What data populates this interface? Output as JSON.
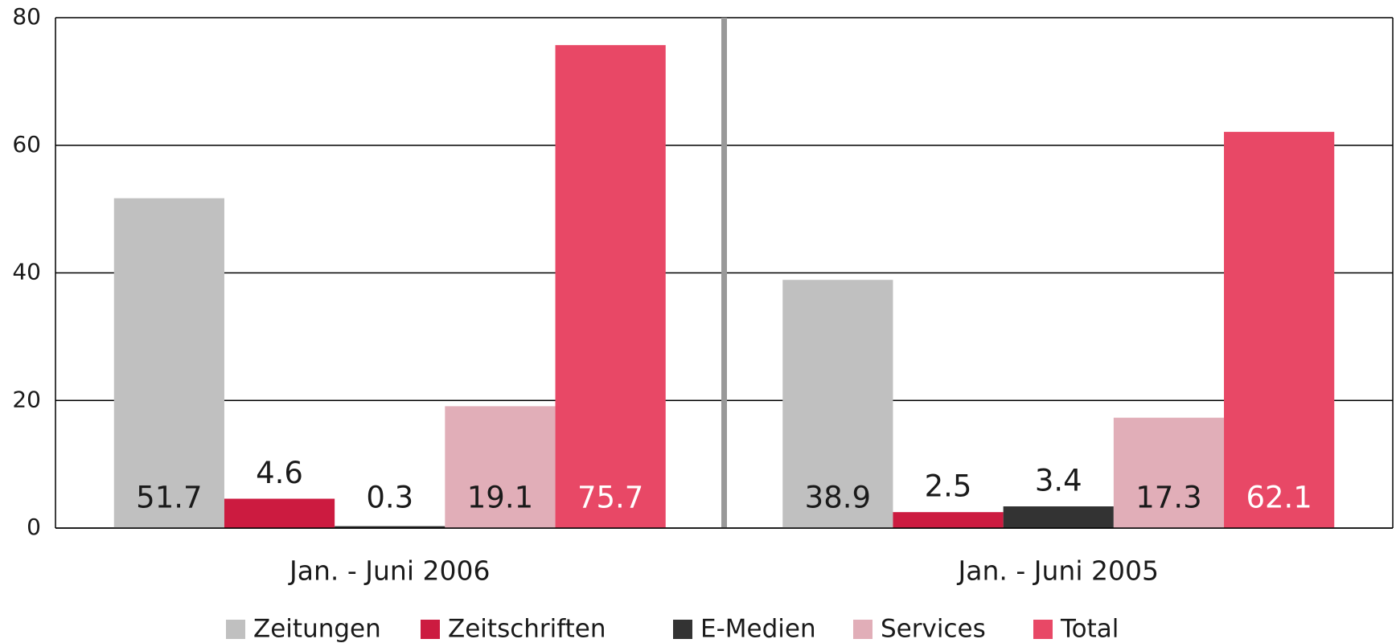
{
  "chart_data": {
    "type": "bar",
    "categories": [
      "Jan. - Juni 2006",
      "Jan. - Juni 2005"
    ],
    "series": [
      {
        "name": "Zeitungen",
        "color": "#c0c0c0",
        "label_color": "#1a1a1a",
        "values": [
          51.7,
          38.9
        ]
      },
      {
        "name": "Zeitschriften",
        "color": "#cc1b40",
        "label_color": "#1a1a1a",
        "values": [
          4.6,
          2.5
        ]
      },
      {
        "name": "E-Medien",
        "color": "#333333",
        "label_color": "#1a1a1a",
        "values": [
          0.3,
          3.4
        ]
      },
      {
        "name": "Services",
        "color": "#e1aeb8",
        "label_color": "#1a1a1a",
        "values": [
          19.1,
          17.3
        ]
      },
      {
        "name": "Total",
        "color": "#e84866",
        "label_color": "#ffffff",
        "values": [
          75.7,
          62.1
        ]
      }
    ],
    "ylim": [
      0,
      80
    ],
    "yticks": [
      0,
      20,
      40,
      60,
      80
    ],
    "grid": true,
    "legend": "bottom"
  }
}
